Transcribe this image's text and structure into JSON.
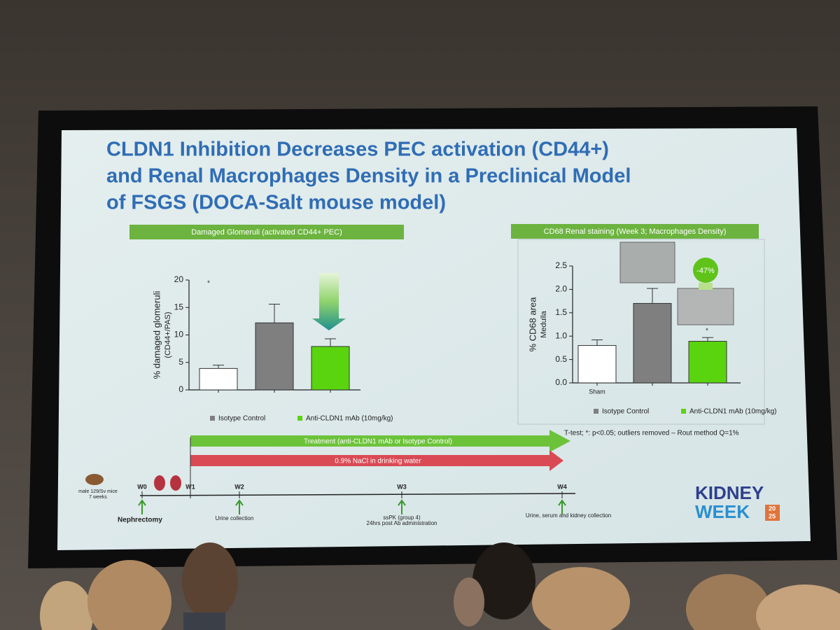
{
  "slide": {
    "title_lines": [
      "CLDN1 Inhibition Decreases PEC activation (CD44+)",
      "and Renal Macrophages Density in a Preclinical Model",
      "of FSGS (DOCA-Salt mouse model)"
    ],
    "footnote": "T-test; *: p<0.05; outliers removed – Rout method Q=1%"
  },
  "chart_data": [
    {
      "type": "bar",
      "header": "Damaged Glomeruli (activated CD44+ PEC)",
      "y_label_lines": [
        "% damaged glomeruli",
        "(CD44+/PAS)"
      ],
      "categories": [
        null,
        null,
        null
      ],
      "values": [
        3.9,
        12.2,
        7.9
      ],
      "errors": [
        0.6,
        3.4,
        1.4
      ],
      "colors": [
        "#ffffff",
        "#7f7f80",
        "#5ad40f"
      ],
      "ylim": [
        0,
        20
      ],
      "yticks": [
        0,
        5,
        10,
        15,
        20
      ],
      "legend": [
        {
          "name": "Isotype Control",
          "color": "#7f7f80"
        },
        {
          "name": "Anti-CLDN1 mAb (10mg/kg)",
          "color": "#5ad40f"
        }
      ],
      "annotations": [
        "*"
      ]
    },
    {
      "type": "bar",
      "header": "CD68 Renal staining (Week 3; Macrophages Density)",
      "y_label_lines": [
        "% CD68 area",
        "Medulla"
      ],
      "categories": [
        "Sham",
        null,
        null
      ],
      "values": [
        0.8,
        1.7,
        0.89
      ],
      "errors": [
        0.12,
        0.32,
        0.08
      ],
      "colors": [
        "#ffffff",
        "#7f7f80",
        "#5ad40f"
      ],
      "ylim": [
        0,
        2.5
      ],
      "yticks": [
        {
          "value": 0,
          "label": "0.0"
        },
        0.5,
        {
          "value": 1,
          "label": "1.0"
        },
        1.5,
        {
          "value": 2,
          "label": "2.0"
        },
        2.5
      ],
      "legend": [
        {
          "name": "Isotype Control",
          "color": "#7f7f80"
        },
        {
          "name": "Anti-CLDN1 mAb (10mg/kg)",
          "color": "#5ad40f"
        }
      ],
      "annotations": [
        "-47%",
        "*"
      ]
    }
  ],
  "timeline": {
    "arrows": [
      "Treatment (anti-CLDN1 mAb or Isotype Control)",
      "0.9% NaCl in drinking water"
    ],
    "mice": [
      "male 129/Sv mice",
      "7 weeks"
    ],
    "weeks": [
      "W0",
      "W1",
      "W2",
      "W3",
      "W4"
    ],
    "events": [
      "Nephrectomy",
      "Urine collection",
      "ssPK (group 4)",
      "24hrs post Ab administration",
      "Urine, serum and kidney collection"
    ]
  },
  "logo": {
    "line1": "KIDNEY",
    "line2": "WEEK",
    "year_top": "20",
    "year_bottom": "25"
  }
}
